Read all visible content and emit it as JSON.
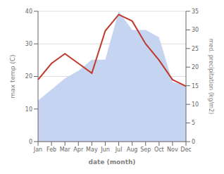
{
  "chart_data": {
    "type": "line",
    "xlabel": "date (month)",
    "ylabel": "max temp (C)",
    "y2label": "med. precipitation (kg/m2)",
    "categories": [
      "Jan",
      "Feb",
      "Mar",
      "Apr",
      "May",
      "Jun",
      "Jul",
      "Aug",
      "Sep",
      "Oct",
      "Nov",
      "Dec"
    ],
    "series": [
      {
        "type": "area",
        "axis": "y2",
        "color": "#c5d4f0",
        "values": [
          11,
          14,
          17,
          19,
          22,
          22,
          35,
          30,
          30,
          28,
          16,
          15
        ]
      },
      {
        "type": "line",
        "color": "#c0392b",
        "values": [
          19,
          24,
          27,
          24,
          21,
          34,
          39,
          37,
          30,
          25,
          19,
          17
        ]
      }
    ],
    "ylim": [
      0,
      40
    ],
    "yticks": [
      0,
      10,
      20,
      30,
      40
    ],
    "y2lim": [
      0,
      35
    ],
    "y2ticks": [
      0,
      5,
      10,
      15,
      20,
      25,
      30,
      35
    ],
    "grid": true
  }
}
